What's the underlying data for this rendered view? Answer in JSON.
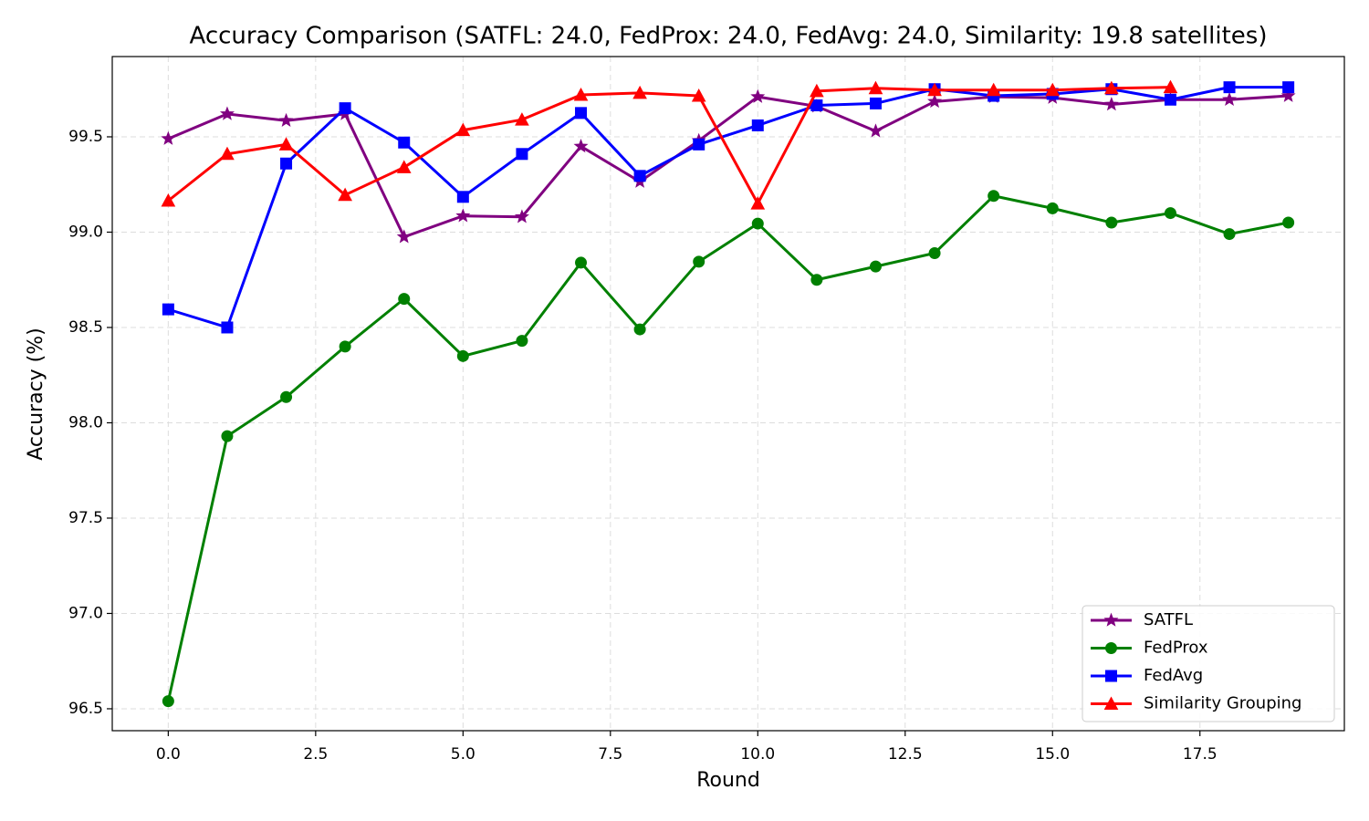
{
  "chart_data": {
    "type": "line",
    "title": "Accuracy Comparison (SATFL: 24.0, FedProx: 24.0, FedAvg: 24.0, Similarity: 19.8 satellites)",
    "x_label": "Round",
    "y_label": "Accuracy (%)",
    "x": [
      0,
      1,
      2,
      3,
      4,
      5,
      6,
      7,
      8,
      9,
      10,
      11,
      12,
      13,
      14,
      15,
      16,
      17,
      18,
      19
    ],
    "series": [
      {
        "name": "SATFL",
        "color": "#800080",
        "marker": "star",
        "values": [
          99.49,
          99.62,
          99.585,
          99.62,
          98.975,
          99.085,
          99.08,
          99.45,
          99.265,
          99.48,
          99.71,
          99.66,
          99.53,
          99.685,
          99.71,
          99.705,
          99.67,
          99.695,
          99.695,
          99.715
        ]
      },
      {
        "name": "FedProx",
        "color": "#008000",
        "marker": "circle",
        "values": [
          96.54,
          97.93,
          98.135,
          98.4,
          98.65,
          98.35,
          98.43,
          98.84,
          98.49,
          98.845,
          99.045,
          98.75,
          98.82,
          98.89,
          99.19,
          99.125,
          99.05,
          99.1,
          98.99,
          99.05
        ]
      },
      {
        "name": "FedAvg",
        "color": "#0000ff",
        "marker": "square",
        "values": [
          98.595,
          98.5,
          99.36,
          99.65,
          99.47,
          99.185,
          99.41,
          99.625,
          99.295,
          99.46,
          99.56,
          99.665,
          99.675,
          99.75,
          99.715,
          99.725,
          99.75,
          99.695,
          99.76,
          99.76
        ]
      },
      {
        "name": "Similarity Grouping",
        "color": "#ff0000",
        "marker": "triangle",
        "values": [
          99.165,
          99.41,
          99.46,
          99.195,
          99.34,
          99.535,
          99.59,
          99.72,
          99.73,
          99.715,
          99.15,
          99.74,
          99.755,
          99.745,
          99.745,
          99.745,
          99.755,
          99.76,
          null,
          null
        ]
      }
    ],
    "xlim": [
      -0.95,
      19.95
    ],
    "ylim": [
      96.385,
      99.921
    ],
    "xticks": [
      {
        "value": 0,
        "label": "0.0"
      },
      2.5,
      {
        "value": 5,
        "label": "5.0"
      },
      7.5,
      {
        "value": 10,
        "label": "10.0"
      },
      12.5,
      {
        "value": 15,
        "label": "15.0"
      },
      17.5
    ],
    "yticks": [
      96.5,
      {
        "value": 97,
        "label": "97.0"
      },
      97.5,
      {
        "value": 98,
        "label": "98.0"
      },
      98.5,
      {
        "value": 99,
        "label": "99.0"
      },
      99.5
    ],
    "grid": true,
    "legend": "lower right"
  }
}
